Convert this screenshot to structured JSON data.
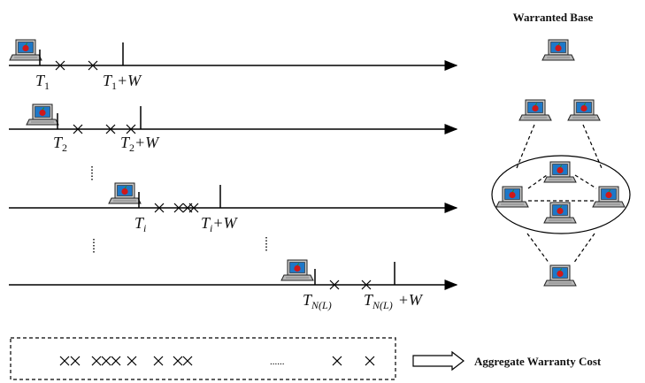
{
  "title": "Warranted Base",
  "timelines": [
    {
      "start_main": "T",
      "start_sub": "1",
      "end_main": "T",
      "end_sub": "1",
      "end_suffix": "+W"
    },
    {
      "start_main": "T",
      "start_sub": "2",
      "end_main": "T",
      "end_sub": "2",
      "end_suffix": "+W"
    },
    {
      "start_main": "T",
      "start_sub": "i",
      "end_main": "T",
      "end_sub": "i",
      "end_suffix": "+W"
    },
    {
      "start_main": "T",
      "start_sub": "N(L)",
      "end_main": "T",
      "end_sub": "N(L)",
      "end_suffix": "+W"
    }
  ],
  "aggregate": {
    "ellipsis": "......",
    "label": "Aggregate Warranty Cost"
  },
  "icons": {
    "computer": "laptop-icon"
  },
  "colors": {
    "screen": "#1e78c8",
    "apple": "#d01818",
    "body": "#c8c8c8"
  }
}
